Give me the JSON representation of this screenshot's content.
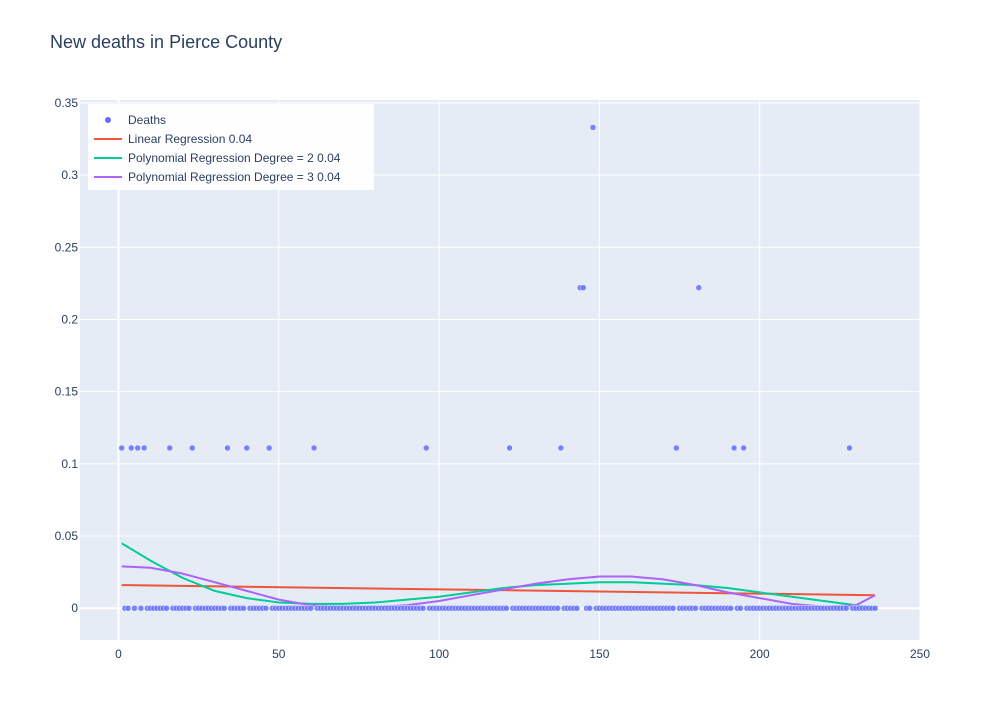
{
  "chart_data": {
    "type": "scatter",
    "title": "New deaths in Pierce County",
    "xlabel": "",
    "ylabel": "",
    "xlim": [
      -12,
      250
    ],
    "ylim": [
      -0.022,
      0.352
    ],
    "x_ticks": [
      0,
      50,
      100,
      150,
      200,
      250
    ],
    "y_ticks": [
      0,
      0.05,
      0.1,
      0.15,
      0.2,
      0.25,
      0.3,
      0.35
    ],
    "y_tick_labels": [
      "0",
      "0.05",
      "0.1",
      "0.15",
      "0.2",
      "0.25",
      "0.3",
      "0.35"
    ],
    "grid": true,
    "legend_position": "top-left",
    "colors": {
      "plot_bg": "#e5ecf6",
      "grid": "#ffffff",
      "text": "#2a3f5f",
      "deaths": "#636efa",
      "linear": "#ef553b",
      "poly2": "#00cc96",
      "poly3": "#ab63fa"
    },
    "series": [
      {
        "name": "Deaths",
        "mode": "markers",
        "nonzero_points": [
          [
            1,
            0.111
          ],
          [
            4,
            0.111
          ],
          [
            6,
            0.111
          ],
          [
            8,
            0.111
          ],
          [
            16,
            0.111
          ],
          [
            23,
            0.111
          ],
          [
            34,
            0.111
          ],
          [
            40,
            0.111
          ],
          [
            47,
            0.111
          ],
          [
            61,
            0.111
          ],
          [
            96,
            0.111
          ],
          [
            122,
            0.111
          ],
          [
            138,
            0.111
          ],
          [
            144,
            0.222
          ],
          [
            145,
            0.222
          ],
          [
            148,
            0.333
          ],
          [
            174,
            0.111
          ],
          [
            181,
            0.222
          ],
          [
            192,
            0.111
          ],
          [
            195,
            0.111
          ],
          [
            228,
            0.111
          ]
        ],
        "zero_x_range": [
          1,
          236
        ]
      },
      {
        "name": "Linear Regression 0.04",
        "mode": "lines",
        "x": [
          1,
          236
        ],
        "y": [
          0.016,
          0.009
        ]
      },
      {
        "name": "Polynomial Regression Degree = 2 0.04",
        "mode": "lines",
        "x": [
          1,
          10,
          20,
          30,
          40,
          50,
          60,
          70,
          80,
          90,
          100,
          110,
          120,
          130,
          140,
          150,
          160,
          170,
          180,
          190,
          200,
          210,
          220,
          230,
          236
        ],
        "y": [
          0.045,
          0.033,
          0.021,
          0.012,
          0.007,
          0.004,
          0.003,
          0.003,
          0.004,
          0.006,
          0.008,
          0.011,
          0.014,
          0.016,
          0.017,
          0.018,
          0.018,
          0.017,
          0.016,
          0.014,
          0.011,
          0.008,
          0.005,
          0.002,
          0.0
        ]
      },
      {
        "name": "Polynomial Regression Degree = 3 0.04",
        "mode": "lines",
        "x": [
          1,
          10,
          20,
          30,
          40,
          50,
          60,
          70,
          80,
          90,
          100,
          110,
          120,
          130,
          140,
          150,
          160,
          170,
          180,
          190,
          200,
          210,
          220,
          230,
          236
        ],
        "y": [
          0.029,
          0.028,
          0.024,
          0.018,
          0.012,
          0.006,
          0.002,
          0.001,
          0.001,
          0.002,
          0.005,
          0.009,
          0.013,
          0.017,
          0.02,
          0.022,
          0.022,
          0.02,
          0.016,
          0.011,
          0.007,
          0.003,
          0.001,
          0.002,
          0.009
        ]
      }
    ]
  }
}
